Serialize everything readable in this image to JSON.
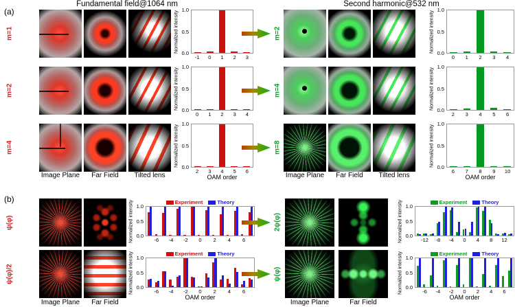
{
  "titles": {
    "left": "Fundamental field@1064 nm",
    "right": "Second harmonic@532 nm"
  },
  "colors": {
    "fundamental_accent": "#d42020",
    "second_harmonic_accent": "#0aa02a",
    "experiment_red": "#cc1111",
    "experiment_green": "#0f9b25",
    "theory_blue": "#2020dd",
    "single_bar_red": "#cc1111",
    "single_bar_green": "#009922"
  },
  "panel_a": {
    "label": "(a)",
    "left": {
      "rows": [
        {
          "label": "m=1",
          "images": [
            "glow-line",
            "ring-s",
            "fringes-s"
          ],
          "chart": 0
        },
        {
          "label": "m=2",
          "images": [
            "glow-line",
            "ring-m",
            "fringes-m"
          ],
          "chart": 1
        },
        {
          "label": "m=4",
          "images": [
            "glow-cross",
            "ring-l",
            "fringes-l"
          ],
          "chart": 2
        }
      ],
      "captions": [
        "Image Plane",
        "Far Field",
        "Tilted lens"
      ]
    },
    "right": {
      "rows": [
        {
          "label": "m=2",
          "images": [
            "glow-dot",
            "ring-m",
            "fringes-m"
          ],
          "chart": 3
        },
        {
          "label": "m=4",
          "images": [
            "glow-dot",
            "ring-l",
            "fringes-m"
          ],
          "chart": 4
        },
        {
          "label": "m=8",
          "images": [
            "burst",
            "ring-xl",
            "fringes-l"
          ],
          "chart": 5
        }
      ],
      "captions": [
        "Image Plane",
        "Far Field",
        "Tilted lens"
      ]
    }
  },
  "panel_b": {
    "label": "(b)",
    "left": {
      "rows": [
        {
          "label": "ψ(φ)",
          "images": [
            "burst",
            "speckle"
          ],
          "chart": 6
        },
        {
          "label": "ψ(φ)/2",
          "images": [
            "burst",
            "hfringe"
          ],
          "chart": 7
        }
      ],
      "captions": [
        "Image Plane",
        "Far Field"
      ]
    },
    "right": {
      "rows": [
        {
          "label": "2ψ(φ)",
          "images": [
            "burst",
            "crosslobes"
          ],
          "chart": 8
        },
        {
          "label": "ψ(φ)",
          "images": [
            "burst",
            "hlobes"
          ],
          "chart": 9
        }
      ],
      "captions": [
        "Image Plane",
        "Far Field"
      ]
    }
  },
  "chart_data": [
    {
      "id": "a_left_m1",
      "type": "bar",
      "categories": [
        -1,
        0,
        1,
        2,
        3
      ],
      "values": [
        0.01,
        0.03,
        1.0,
        0.04,
        0.02
      ],
      "bar_color": "#cc1111",
      "ylabel": "Normalized intensity",
      "xlabel": "",
      "ylim": [
        0,
        1
      ],
      "yticks": [
        "0.0",
        "0.5",
        "1.0"
      ]
    },
    {
      "id": "a_left_m2",
      "type": "bar",
      "categories": [
        0,
        1,
        2,
        3,
        4
      ],
      "values": [
        0.01,
        0.02,
        1.0,
        0.02,
        0.01
      ],
      "bar_color": "#cc1111",
      "ylabel": "Normalized intensity",
      "xlabel": "",
      "ylim": [
        0,
        1
      ],
      "yticks": [
        "0.0",
        "0.5",
        "1.0"
      ]
    },
    {
      "id": "a_left_m4",
      "type": "bar",
      "categories": [
        2,
        3,
        4,
        5,
        6
      ],
      "values": [
        0.01,
        0.02,
        1.0,
        0.02,
        0.01
      ],
      "bar_color": "#cc1111",
      "ylabel": "Normalized intensity",
      "xlabel": "OAM order",
      "ylim": [
        0,
        1
      ],
      "yticks": [
        "0.0",
        "0.5",
        "1.0"
      ]
    },
    {
      "id": "a_right_m2",
      "type": "bar",
      "categories": [
        0,
        1,
        2,
        3,
        4
      ],
      "values": [
        0.01,
        0.03,
        1.0,
        0.03,
        0.01
      ],
      "bar_color": "#009922",
      "ylabel": "Normalized intensity",
      "xlabel": "",
      "ylim": [
        0,
        1
      ],
      "yticks": [
        "0.0",
        "0.5",
        "1.0"
      ]
    },
    {
      "id": "a_right_m4",
      "type": "bar",
      "categories": [
        2,
        3,
        4,
        5,
        6
      ],
      "values": [
        0.01,
        0.04,
        1.0,
        0.05,
        0.01
      ],
      "bar_color": "#009922",
      "ylabel": "Normalized intensity",
      "xlabel": "",
      "ylim": [
        0,
        1
      ],
      "yticks": [
        "0.0",
        "0.5",
        "1.0"
      ]
    },
    {
      "id": "a_right_m8",
      "type": "bar",
      "categories": [
        6,
        7,
        8,
        9,
        10
      ],
      "values": [
        0.01,
        0.02,
        1.0,
        0.01,
        0.01
      ],
      "bar_color": "#009922",
      "ylabel": "Normalized intensity",
      "xlabel": "OAM order",
      "ylim": [
        0,
        1
      ],
      "yticks": [
        "0.0",
        "0.5",
        "1.0"
      ]
    },
    {
      "id": "b_left_psi",
      "type": "bar",
      "x": [
        -7,
        -6,
        -5,
        -4,
        -3,
        -2,
        -1,
        0,
        1,
        2,
        3,
        4,
        5,
        6,
        7
      ],
      "xticks": [
        -6,
        -4,
        -2,
        0,
        2,
        4,
        6
      ],
      "series": [
        {
          "name": "Experiment",
          "color": "#cc1111",
          "values": [
            0.82,
            0.05,
            0.79,
            0.03,
            0.93,
            0.03,
            1.0,
            0.03,
            0.88,
            0.02,
            0.74,
            0.03,
            0.86,
            0.05,
            0.81
          ]
        },
        {
          "name": "Theory",
          "color": "#2020dd",
          "values": [
            1.0,
            0.0,
            1.0,
            0.0,
            1.0,
            0.0,
            1.0,
            0.0,
            1.0,
            0.0,
            1.0,
            0.0,
            1.0,
            0.0,
            1.0
          ]
        }
      ],
      "ylabel": "Normalized intensity",
      "xlabel": "",
      "ylim": [
        0,
        1
      ],
      "yticks": [
        "0.0",
        "0.5",
        "1.0"
      ],
      "legend_position": "top"
    },
    {
      "id": "b_left_psi_half",
      "type": "bar",
      "x": [
        -7,
        -6,
        -5,
        -4,
        -3,
        -2,
        -1,
        0,
        1,
        2,
        3,
        4,
        5,
        6,
        7
      ],
      "xticks": [
        -6,
        -4,
        -2,
        0,
        2,
        4,
        6
      ],
      "series": [
        {
          "name": "Experiment",
          "color": "#cc1111",
          "values": [
            0.27,
            0.16,
            0.54,
            0.26,
            0.35,
            1.0,
            0.35,
            0.02,
            0.47,
            0.85,
            0.26,
            0.28,
            0.67,
            0.09,
            0.32
          ]
        },
        {
          "name": "Theory",
          "color": "#2020dd",
          "values": [
            0.28,
            0.22,
            0.54,
            0.05,
            0.4,
            1.0,
            0.33,
            0.02,
            0.33,
            1.0,
            0.4,
            0.12,
            0.53,
            0.22,
            0.26
          ]
        }
      ],
      "ylabel": "Normalized intensity",
      "xlabel": "OAM order",
      "ylim": [
        0,
        1
      ],
      "yticks": [
        "0.0",
        "0.5",
        "1.0"
      ],
      "legend_position": "top"
    },
    {
      "id": "b_right_2psi",
      "type": "bar",
      "x": [
        -14,
        -12,
        -10,
        -8,
        -6,
        -4,
        -2,
        0,
        2,
        4,
        6,
        8,
        10,
        12,
        14
      ],
      "xticks": [
        -12,
        -8,
        -4,
        0,
        4,
        8,
        12
      ],
      "series": [
        {
          "name": "Experiment",
          "color": "#0f9b25",
          "values": [
            0.08,
            0.06,
            0.05,
            0.42,
            0.82,
            0.88,
            0.12,
            0.22,
            0.12,
            0.97,
            0.85,
            0.55,
            0.06,
            0.07,
            0.05
          ]
        },
        {
          "name": "Theory",
          "color": "#2020dd",
          "values": [
            0.04,
            0.08,
            0.08,
            0.48,
            1.0,
            0.97,
            0.47,
            0.25,
            0.47,
            1.0,
            1.0,
            0.42,
            0.05,
            0.09,
            0.08
          ]
        }
      ],
      "ylabel": "Normalized intensity",
      "xlabel": "",
      "ylim": [
        0,
        1
      ],
      "yticks": [
        "0.0",
        "0.5",
        "1.0"
      ],
      "legend_position": "top"
    },
    {
      "id": "b_right_psi",
      "type": "bar",
      "x": [
        -7,
        -6,
        -5,
        -4,
        -3,
        -2,
        -1,
        0,
        1,
        2,
        3,
        4,
        5,
        6,
        7
      ],
      "xticks": [
        -6,
        -4,
        -2,
        0,
        2,
        4,
        6
      ],
      "series": [
        {
          "name": "Experiment",
          "color": "#0f9b25",
          "values": [
            0.73,
            0.1,
            0.4,
            0.04,
            0.92,
            0.03,
            0.77,
            0.1,
            1.0,
            0.03,
            0.45,
            0.05,
            0.77,
            0.38,
            0.58
          ]
        },
        {
          "name": "Theory",
          "color": "#2020dd",
          "values": [
            1.0,
            0.0,
            1.0,
            0.0,
            1.0,
            0.0,
            1.0,
            0.0,
            1.0,
            0.0,
            1.0,
            0.0,
            1.0,
            0.0,
            1.0
          ]
        }
      ],
      "ylabel": "Normalized intensity",
      "xlabel": "OAM order",
      "ylim": [
        0,
        1
      ],
      "yticks": [
        "0.0",
        "0.5",
        "1.0"
      ],
      "legend_position": "top"
    }
  ]
}
